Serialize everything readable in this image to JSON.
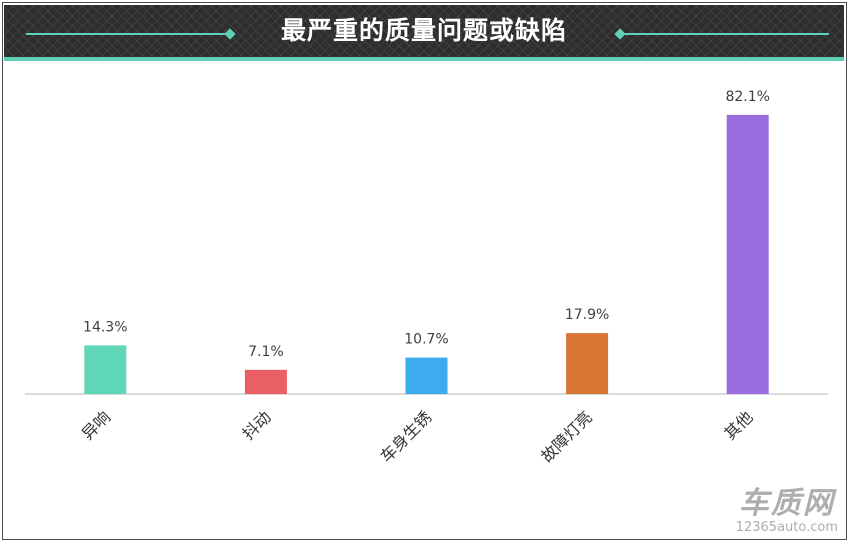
{
  "chart_data": {
    "type": "bar",
    "title": "最严重的质量问题或缺陷",
    "categories": [
      "异响",
      "抖动",
      "车身生锈",
      "故障灯亮",
      "其他"
    ],
    "values": [
      14.3,
      7.1,
      10.7,
      17.9,
      82.1
    ],
    "value_labels": [
      "14.3%",
      "7.1%",
      "10.7%",
      "17.9%",
      "82.1%"
    ],
    "colors": [
      "#5fd6b8",
      "#ea5f63",
      "#3dacee",
      "#d87534",
      "#9b6ee0"
    ],
    "ylim": [
      0,
      90
    ],
    "grid": false,
    "legend": "none"
  },
  "watermark": {
    "main": "车质网",
    "sub": "12365auto.com"
  }
}
